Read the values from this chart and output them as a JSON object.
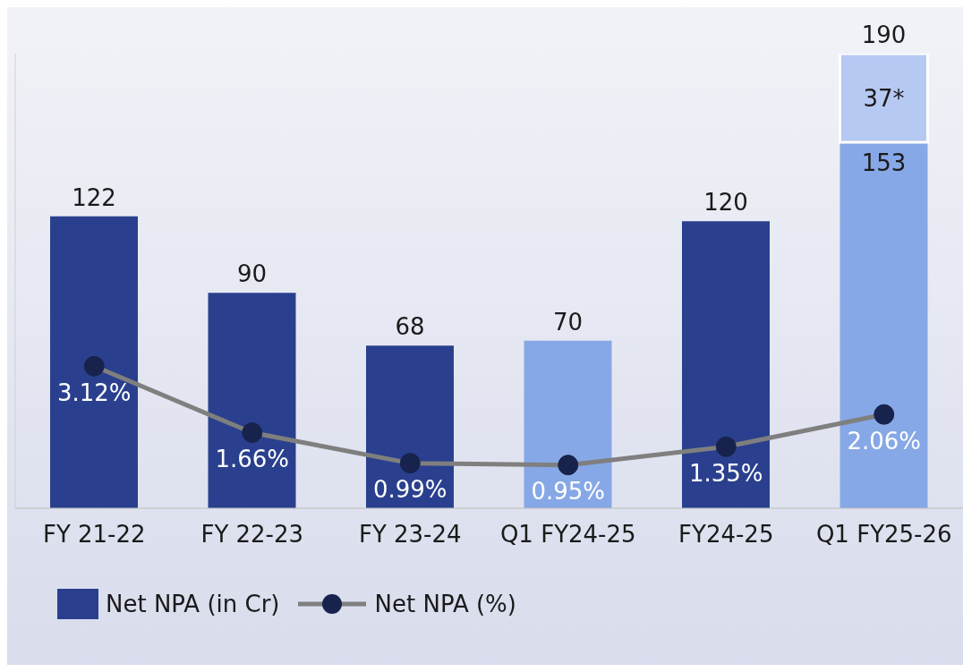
{
  "chart_data": {
    "type": "bar",
    "categories": [
      "FY 21-22",
      "FY 22-23",
      "FY 23-24",
      "Q1 FY24-25",
      "FY24-25",
      "Q1 FY25-26"
    ],
    "series": [
      {
        "name": "Net NPA (in Cr)",
        "colors": [
          "#2a408e",
          "#2a408e",
          "#2a408e",
          "#87a8e6",
          "#2a408e",
          "#87a8e6"
        ],
        "values": [
          122,
          90,
          68,
          70,
          120,
          153
        ],
        "data_labels": true
      },
      {
        "color": "#b6c9f2",
        "values": [
          null,
          null,
          null,
          null,
          null,
          37
        ],
        "value_labels": [
          null,
          null,
          null,
          null,
          null,
          "37*"
        ]
      },
      {
        "name": "Net NPA (%)",
        "type": "line",
        "axis": "y2",
        "color": "#7f7f7f",
        "marker": "circle",
        "values": [
          3.12,
          1.66,
          0.99,
          0.95,
          1.35,
          2.06
        ],
        "value_labels": [
          "3.12%",
          "1.66%",
          "0.99%",
          "0.95%",
          "1.35%",
          "2.06%"
        ]
      }
    ],
    "stacked": true,
    "totals": [
      null,
      null,
      null,
      null,
      null,
      "190"
    ],
    "ylim": [
      0,
      190
    ],
    "legend": "bottom left"
  }
}
